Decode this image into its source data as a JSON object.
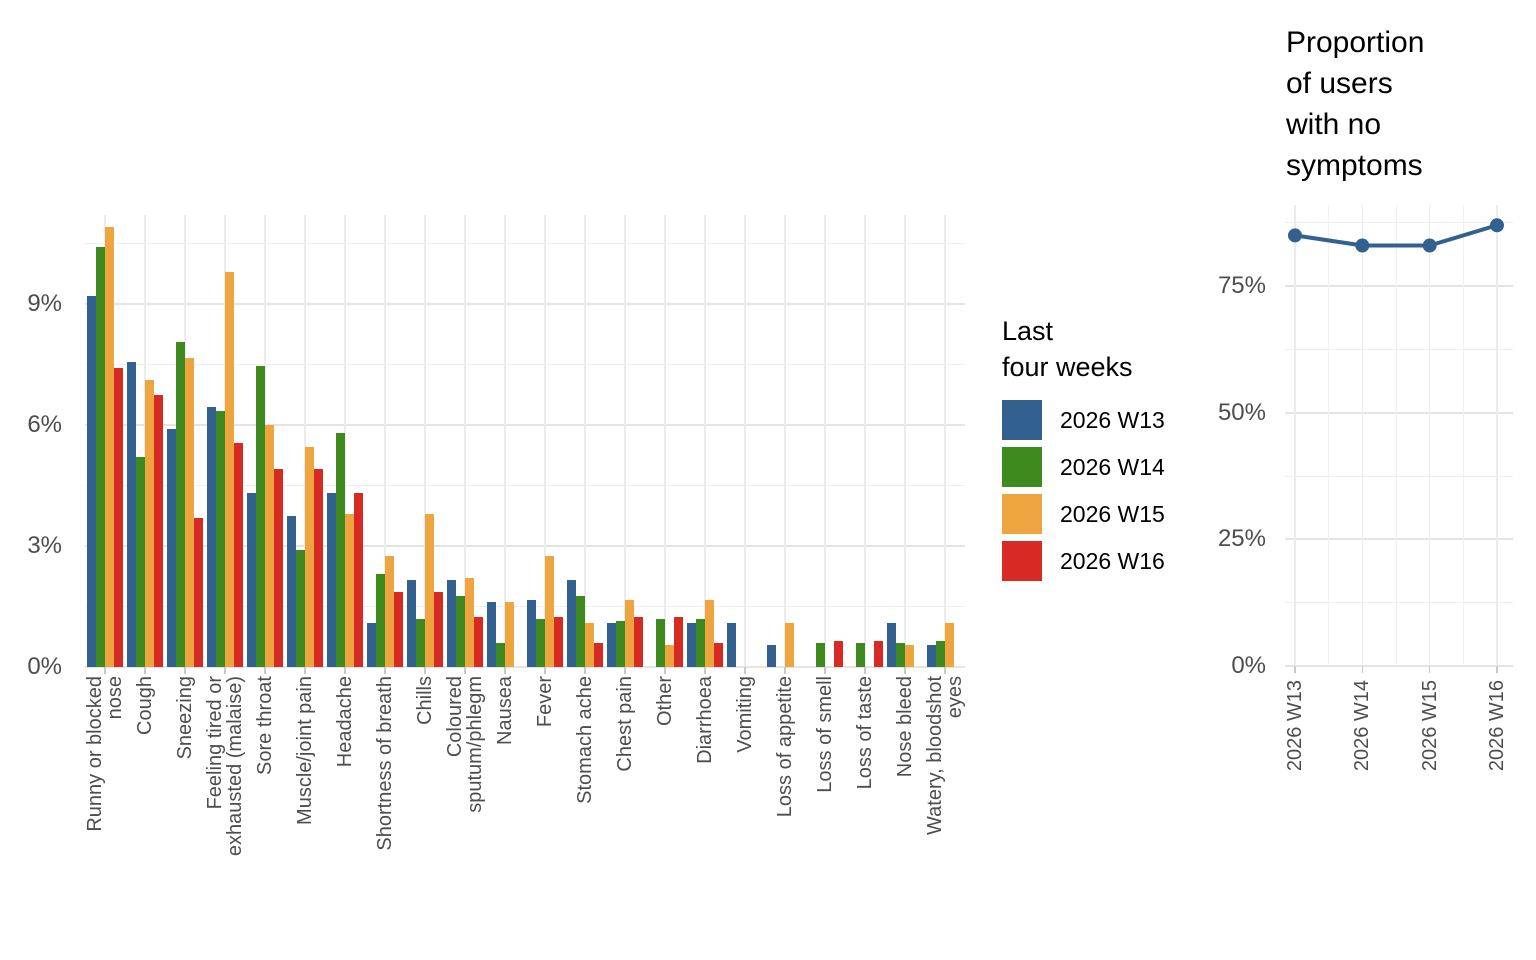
{
  "chart_data": [
    {
      "type": "bar",
      "title": "",
      "legend_title": "Last\nfour weeks",
      "legend_position": "right",
      "grid": true,
      "ylabel": "",
      "ylim": [
        0,
        11.2
      ],
      "y_major_ticks": [
        0,
        3,
        6,
        9
      ],
      "y_tick_labels": [
        "0%",
        "3%",
        "6%",
        "9%"
      ],
      "y_minor_ticks": [
        1.5,
        4.5,
        7.5,
        10.5
      ],
      "categories": [
        "Runny or blocked\nnose",
        "Cough",
        "Sneezing",
        "Feeling tired or\nexhausted (malaise)",
        "Sore throat",
        "Muscle/joint pain",
        "Headache",
        "Shortness of breath",
        "Chills",
        "Coloured\nsputum/phlegm",
        "Nausea",
        "Fever",
        "Stomach ache",
        "Chest pain",
        "Other",
        "Diarrhoea",
        "Vomiting",
        "Loss of appetite",
        "Loss of smell",
        "Loss of taste",
        "Nose bleed",
        "Watery, bloodshot\neyes"
      ],
      "series": [
        {
          "name": "2026 W13",
          "color": "#32618F",
          "values": [
            9.2,
            7.55,
            5.9,
            6.45,
            4.3,
            3.75,
            4.3,
            1.1,
            2.15,
            2.15,
            1.6,
            1.65,
            2.15,
            1.1,
            0,
            1.1,
            1.1,
            0.55,
            0,
            0,
            1.1,
            0.55
          ]
        },
        {
          "name": "2026 W14",
          "color": "#3F8A1E",
          "values": [
            10.4,
            5.2,
            8.05,
            6.35,
            7.45,
            2.9,
            5.8,
            2.3,
            1.2,
            1.75,
            0.6,
            1.2,
            1.75,
            1.15,
            1.2,
            1.2,
            0,
            0,
            0.6,
            0.6,
            0.6,
            0.65
          ]
        },
        {
          "name": "2026 W15",
          "color": "#EFA53F",
          "values": [
            10.9,
            7.1,
            7.65,
            9.8,
            6.0,
            5.45,
            3.8,
            2.75,
            3.8,
            2.2,
            1.6,
            2.75,
            1.1,
            1.65,
            0.55,
            1.65,
            0,
            1.1,
            0,
            0,
            0.55,
            1.1
          ]
        },
        {
          "name": "2026 W16",
          "color": "#D72A22",
          "values": [
            7.4,
            6.75,
            3.7,
            5.55,
            4.9,
            4.9,
            4.3,
            1.85,
            1.85,
            1.25,
            0,
            1.25,
            0.6,
            1.25,
            1.25,
            0.6,
            0,
            0,
            0.65,
            0.65,
            0,
            0
          ]
        }
      ]
    },
    {
      "type": "line",
      "title": "Proportion\nof users\nwith no\nsymptoms",
      "grid": true,
      "color": "#32618F",
      "x": [
        "2026 W13",
        "2026 W14",
        "2026 W15",
        "2026 W16"
      ],
      "values": [
        85,
        83,
        83,
        87
      ],
      "ylim": [
        0,
        91
      ],
      "y_major_ticks": [
        0,
        25,
        50,
        75
      ],
      "y_tick_labels": [
        "0%",
        "25%",
        "50%",
        "75%"
      ],
      "y_minor_ticks": [
        12.5,
        37.5,
        62.5,
        87.5
      ]
    }
  ]
}
